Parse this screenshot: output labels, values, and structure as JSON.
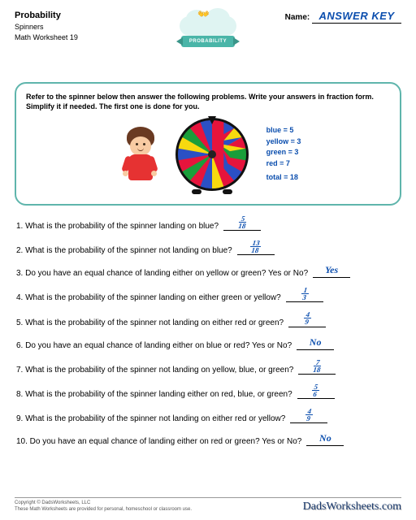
{
  "header": {
    "title": "Probability",
    "subtitle1": "Spinners",
    "subtitle2": "Math Worksheet 19",
    "name_label": "Name:",
    "answer_key": "ANSWER KEY",
    "badge_label": "PROBABILITY"
  },
  "instruction": "Refer to the spinner below then answer the following problems.  Write your answers in fraction form. Simplify it if needed.  The first one is done for you.",
  "spinner": {
    "slices": [
      {
        "deg": 0,
        "color": "#2b50c4"
      },
      {
        "deg": 20,
        "color": "#f7d90f"
      },
      {
        "deg": 40,
        "color": "#e6143c"
      },
      {
        "deg": 60,
        "color": "#1a9e3a"
      },
      {
        "deg": 80,
        "color": "#e6143c"
      },
      {
        "deg": 100,
        "color": "#2b50c4"
      },
      {
        "deg": 120,
        "color": "#e6143c"
      },
      {
        "deg": 140,
        "color": "#f7d90f"
      },
      {
        "deg": 160,
        "color": "#2b50c4"
      },
      {
        "deg": 180,
        "color": "#e6143c"
      },
      {
        "deg": 200,
        "color": "#1a9e3a"
      },
      {
        "deg": 220,
        "color": "#e6143c"
      },
      {
        "deg": 240,
        "color": "#2b50c4"
      },
      {
        "deg": 260,
        "color": "#f7d90f"
      },
      {
        "deg": 280,
        "color": "#1a9e3a"
      },
      {
        "deg": 300,
        "color": "#e6143c"
      },
      {
        "deg": 320,
        "color": "#2b50c4"
      },
      {
        "deg": 340,
        "color": "#e6143c"
      }
    ]
  },
  "legend": [
    {
      "label": "blue = 5"
    },
    {
      "label": "yellow = 3"
    },
    {
      "label": "green = 3"
    },
    {
      "label": "red = 7"
    },
    {
      "label": "total = 18"
    }
  ],
  "questions": [
    {
      "n": "1.",
      "text": "What is the probability of the spinner landing on blue?",
      "num": "5",
      "den": "18"
    },
    {
      "n": "2.",
      "text": "What is the probability of the spinner not landing on blue?",
      "num": "13",
      "den": "18"
    },
    {
      "n": "3.",
      "text": "Do you have an equal chance of landing either on yellow or green? Yes or No?",
      "word": "Yes"
    },
    {
      "n": "4.",
      "text": "What is the probability of the spinner landing on either green or yellow?",
      "num": "1",
      "den": "3"
    },
    {
      "n": "5.",
      "text": "What is the probability of the spinner not landing on either red or green?",
      "num": "4",
      "den": "9"
    },
    {
      "n": "6.",
      "text": "Do you have an equal chance of landing either on blue or red? Yes or No?",
      "word": "No"
    },
    {
      "n": "7.",
      "text": "What is the probability of the spinner not landing on yellow, blue, or green?",
      "num": "7",
      "den": "18"
    },
    {
      "n": "8.",
      "text": "What is the probability of the spinner landing either on red, blue, or green?",
      "num": "5",
      "den": "6"
    },
    {
      "n": "9.",
      "text": "What is the probability of the spinner not landing on either red or yellow?",
      "num": "4",
      "den": "9"
    },
    {
      "n": "10.",
      "text": "Do you have an equal chance of landing either on red or green? Yes or No?",
      "word": "No"
    }
  ],
  "footer": {
    "line1": "Copyright © DadsWorksheets, LLC",
    "line2": "These Math Worksheets are provided for personal, homeschool or classroom use.",
    "logo": "DadsWorksheets.com"
  }
}
